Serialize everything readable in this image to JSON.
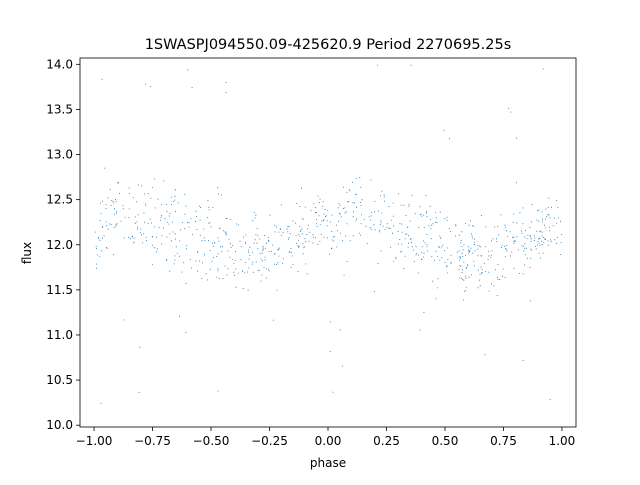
{
  "chart_data": {
    "type": "scatter",
    "title": "1SWASPJ094550.09-425620.9 Period 2270695.25s",
    "xlabel": "phase",
    "ylabel": "flux",
    "xlim": [
      -1.06,
      1.06
    ],
    "ylim": [
      9.98,
      14.07
    ],
    "xticks": [
      -1.0,
      -0.75,
      -0.5,
      -0.25,
      0.0,
      0.25,
      0.5,
      0.75,
      1.0
    ],
    "xtick_labels": [
      "−1.00",
      "−0.75",
      "−0.50",
      "−0.25",
      "0.00",
      "0.25",
      "0.50",
      "0.75",
      "1.00"
    ],
    "yticks": [
      10.0,
      10.5,
      11.0,
      11.5,
      12.0,
      12.5,
      13.0,
      13.5,
      14.0
    ],
    "ytick_labels": [
      "10.0",
      "10.5",
      "11.0",
      "11.5",
      "12.0",
      "12.5",
      "13.0",
      "13.5",
      "14.0"
    ],
    "grid": false,
    "marker_color": "#1f77b4",
    "phase_range": [
      -1.0,
      1.0
    ],
    "flux_range": [
      10.2,
      14.05
    ],
    "series": [
      {
        "profile_phase": [
          0.0,
          0.05,
          0.1,
          0.15,
          0.2,
          0.25,
          0.3,
          0.35,
          0.4,
          0.45,
          0.5,
          0.55,
          0.6,
          0.65,
          0.7,
          0.75,
          0.8,
          0.85,
          0.9,
          0.95,
          1.0
        ],
        "profile_mean_flux": [
          12.05,
          12.3,
          12.4,
          12.35,
          12.3,
          12.25,
          12.2,
          12.15,
          12.1,
          12.05,
          12.0,
          11.95,
          11.9,
          11.85,
          11.9,
          11.95,
          12.0,
          12.05,
          12.1,
          12.2,
          12.3
        ],
        "profile_spread": [
          0.3,
          0.32,
          0.35,
          0.38,
          0.4,
          0.42,
          0.45,
          0.42,
          0.42,
          0.4,
          0.4,
          0.38,
          0.38,
          0.36,
          0.36,
          0.34,
          0.33,
          0.32,
          0.32,
          0.3,
          0.3
        ]
      }
    ]
  }
}
